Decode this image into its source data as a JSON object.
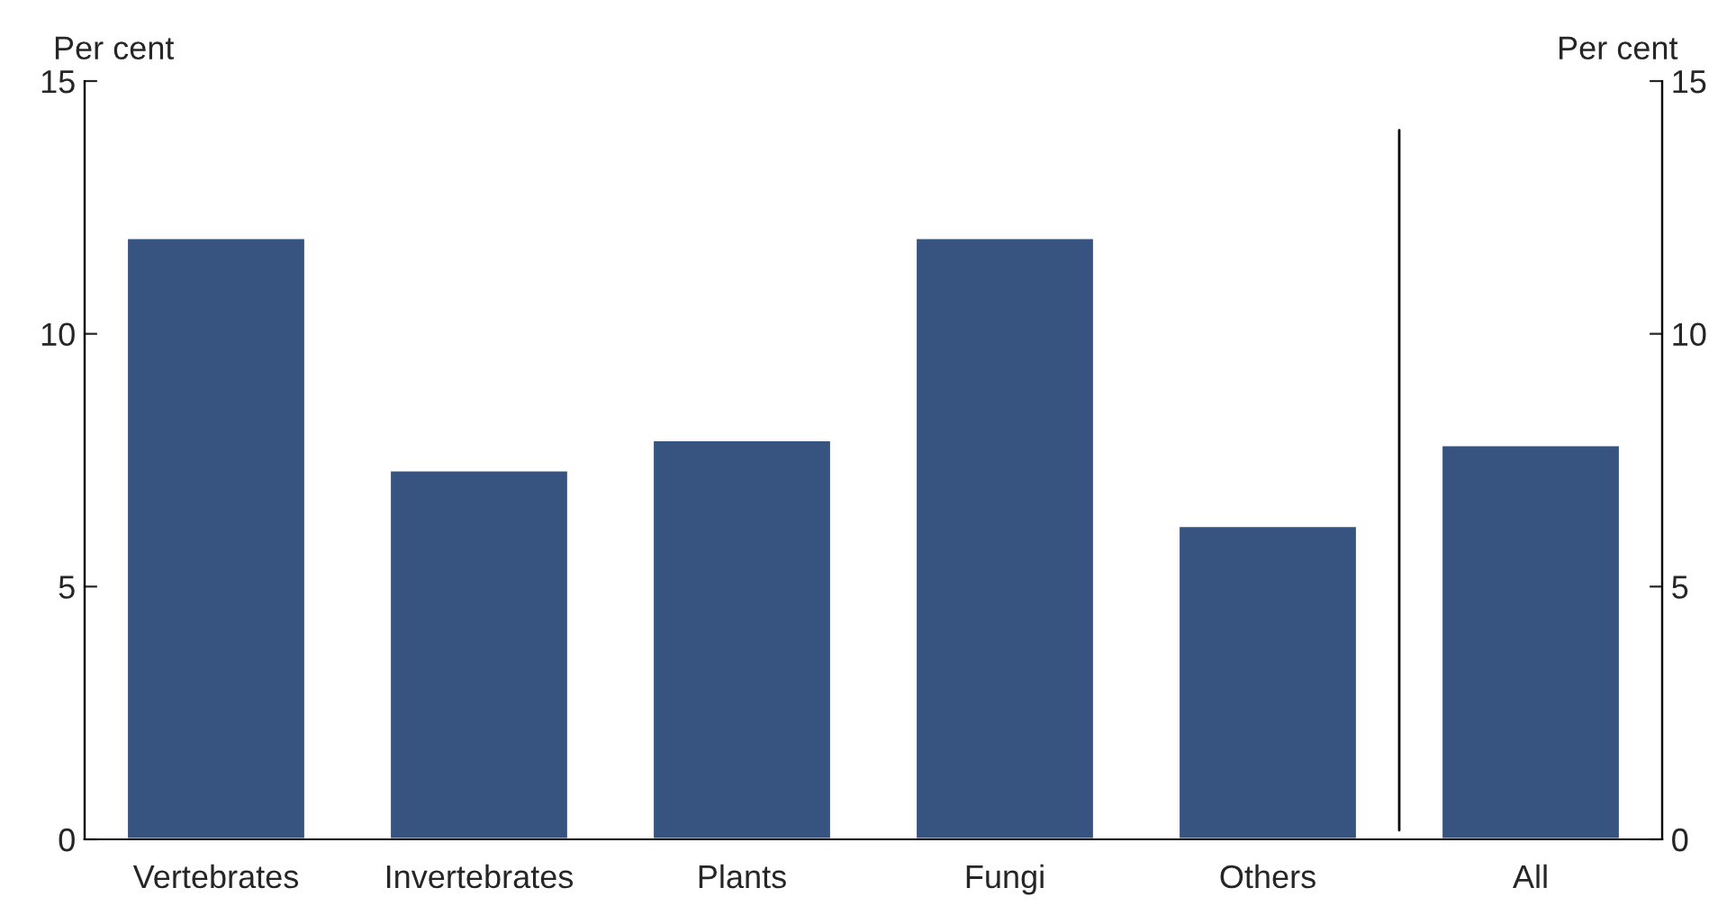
{
  "chart_data": {
    "type": "bar",
    "ylabel": "Per cent",
    "y2label": "Per cent",
    "categories": [
      "Vertebrates",
      "Invertebrates",
      "Plants",
      "Fungi",
      "Others",
      "All"
    ],
    "values": [
      11.9,
      7.3,
      7.9,
      11.9,
      6.2,
      7.8
    ],
    "color": "#36547f",
    "ylim": [
      0,
      15
    ],
    "yticks": [
      0,
      5,
      10,
      15
    ],
    "y2lim": [
      0,
      15
    ],
    "y2ticks": [
      0,
      5,
      10,
      15
    ],
    "grid": false,
    "legend": false
  }
}
